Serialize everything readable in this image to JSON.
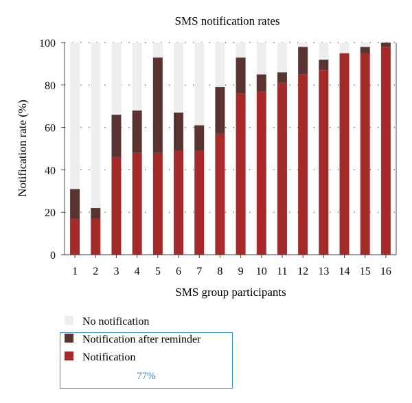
{
  "chart_data": {
    "type": "bar",
    "stacked": true,
    "title": "SMS notification rates",
    "xlabel": "SMS group participants",
    "ylabel": "Notification rate (%)",
    "ylim": [
      0,
      100
    ],
    "yticks": [
      0,
      20,
      40,
      60,
      80,
      100
    ],
    "grid": "dotted horizontal",
    "legend_position": "bottom-left",
    "categories": [
      "1",
      "2",
      "3",
      "4",
      "5",
      "6",
      "7",
      "8",
      "9",
      "10",
      "11",
      "12",
      "13",
      "14",
      "15",
      "16"
    ],
    "series": [
      {
        "name": "Notification",
        "color": "#a52a2a",
        "values": [
          17,
          17,
          46,
          48,
          48,
          49,
          49,
          57,
          76,
          77,
          81,
          85,
          87,
          95,
          95,
          98
        ]
      },
      {
        "name": "Notification after reminder",
        "color": "#5a3430",
        "values": [
          14,
          5,
          20,
          20,
          45,
          18,
          12,
          22,
          17,
          8,
          5,
          13,
          5,
          0,
          3,
          2
        ]
      },
      {
        "name": "No notification",
        "color": "#eeeeee",
        "values": [
          69,
          78,
          34,
          32,
          7,
          33,
          39,
          21,
          7,
          15,
          14,
          2,
          8,
          5,
          2,
          0
        ]
      }
    ],
    "legend_order": [
      "No notification",
      "Notification after reminder",
      "Notification"
    ],
    "summary_value": "77%"
  }
}
